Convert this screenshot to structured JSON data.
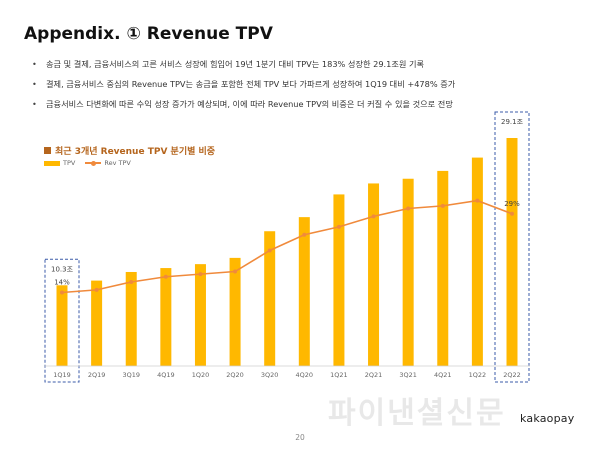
{
  "page": {
    "title": "Appendix. ① Revenue TPV",
    "bullets": [
      "송금 및 결제, 금융서비스의 고른 서비스 성장에 힘입어 19년 1분기 대비 TPV는 183% 성장한 29.1조원 기록",
      "결제, 금융서비스 중심의 Revenue TPV는 송금을 포함한 전체 TPV 보다 가파르게 성장하여 1Q19 대비 +478% 증가",
      "금융서비스 다변화에 따른 수익 성장 증가가 예상되며, 이에 따라 Revenue TPV의 비중은 더 커질 수 있을 것으로 전망"
    ],
    "section_title": "최근 3개년 Revenue TPV 분기별 비중",
    "watermark": "파이낸셜신문",
    "logo": "kakaopay",
    "page_number": "20"
  },
  "colors": {
    "bar": "#FFB800",
    "line": "#F08A3C",
    "highlight_box": "#3B5BA9",
    "section_title": "#B5651D"
  },
  "chart_data": {
    "type": "bar",
    "categories": [
      "1Q19",
      "2Q19",
      "3Q19",
      "4Q19",
      "1Q20",
      "2Q20",
      "3Q20",
      "4Q20",
      "1Q21",
      "2Q21",
      "3Q21",
      "4Q21",
      "1Q22",
      "2Q22"
    ],
    "series": [
      {
        "name": "TPV",
        "type": "bar",
        "unit": "조",
        "values": [
          10.3,
          10.9,
          12.0,
          12.5,
          13.0,
          13.8,
          17.2,
          19.0,
          21.9,
          23.3,
          23.9,
          24.9,
          26.6,
          29.1
        ]
      },
      {
        "name": "Rev TPV",
        "type": "line",
        "unit": "%",
        "values": [
          14,
          14.5,
          16,
          17,
          17.5,
          18,
          22,
          25,
          26.5,
          28.5,
          30,
          30.5,
          31.5,
          29
        ]
      }
    ],
    "legend": [
      "TPV",
      "Rev TPV"
    ],
    "data_labels": [
      {
        "category": "1Q19",
        "series": "TPV",
        "text": "10.3조"
      },
      {
        "category": "2Q22",
        "series": "TPV",
        "text": "29.1조"
      },
      {
        "category": "1Q19",
        "series": "Rev TPV",
        "text": "14%"
      },
      {
        "category": "2Q22",
        "series": "Rev TPV",
        "text": "29%"
      }
    ],
    "highlighted_categories": [
      "1Q19",
      "2Q22"
    ],
    "legend_placement": "top-left",
    "grid": false,
    "title": "최근 3개년 Revenue TPV 분기별 비중",
    "xlabel": "",
    "ylabel": ""
  }
}
